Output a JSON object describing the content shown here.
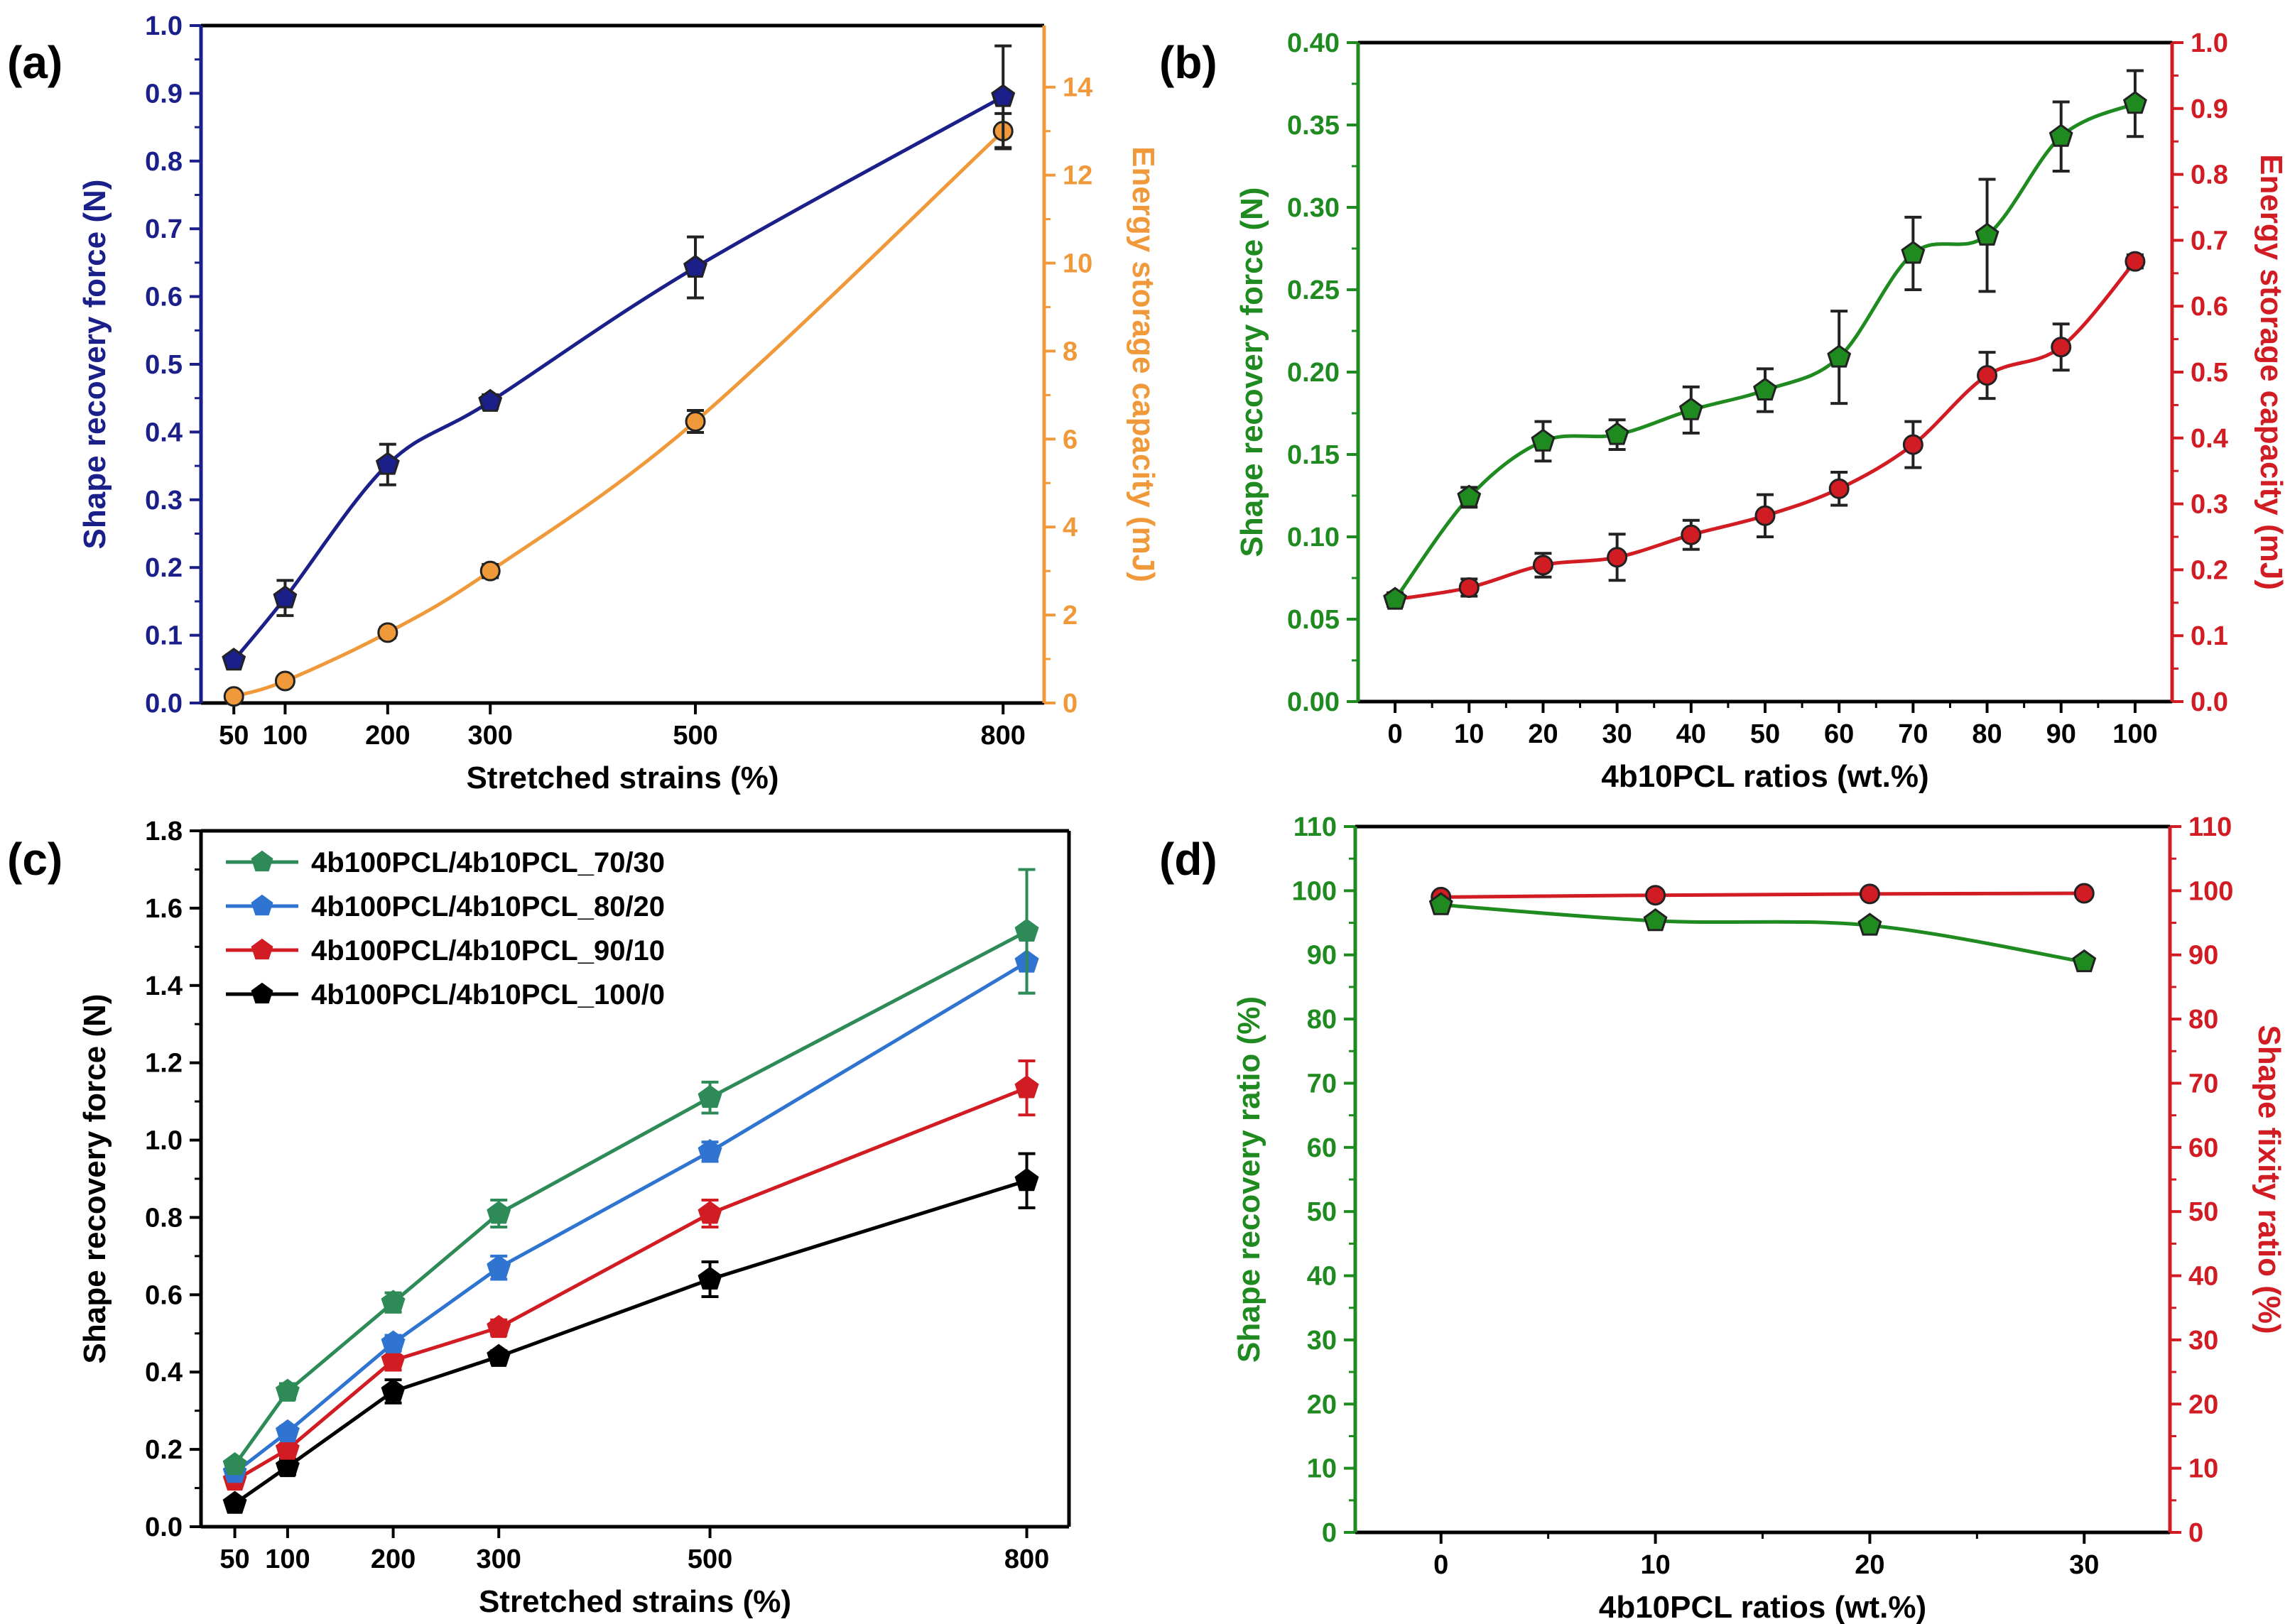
{
  "panels": {
    "a": {
      "letter": "(a)"
    },
    "b": {
      "letter": "(b)"
    },
    "c": {
      "letter": "(c)"
    },
    "d": {
      "letter": "(d)"
    }
  },
  "colors": {
    "navy": "#1b1f8a",
    "orange": "#f0993a",
    "green": "#1f8a1f",
    "red": "#d01c22",
    "teal": "#2e8b57",
    "blue": "#2f74d0",
    "black": "#000000"
  },
  "chart_data": [
    {
      "id": "a",
      "type": "line",
      "title": "",
      "xlabel": "Stretched strains (%)",
      "ylabel": "Shape recovery force (N)",
      "y2label": "Energy storage capacity (mJ)",
      "xlim": [
        18,
        840
      ],
      "ylim": [
        0,
        1.0
      ],
      "y2lim": [
        0,
        15.4
      ],
      "xticks": [
        50,
        100,
        200,
        300,
        500,
        800
      ],
      "yticks": [
        0.0,
        0.1,
        0.2,
        0.3,
        0.4,
        0.5,
        0.6,
        0.7,
        0.8,
        0.9,
        1.0
      ],
      "y2ticks": [
        0,
        2,
        4,
        6,
        8,
        10,
        12,
        14
      ],
      "x": [
        50,
        100,
        200,
        300,
        500,
        800
      ],
      "series": [
        {
          "name": "Shape recovery force",
          "axis": "left",
          "color": "#1b1f8a",
          "marker": "pentagon",
          "values": [
            0.063,
            0.155,
            0.352,
            0.445,
            0.643,
            0.895
          ],
          "errors": [
            0.008,
            0.026,
            0.03,
            0.01,
            0.045,
            0.075
          ]
        },
        {
          "name": "Energy storage capacity",
          "axis": "right",
          "color": "#f0993a",
          "marker": "circle",
          "values": [
            0.15,
            0.5,
            1.6,
            3.0,
            6.4,
            13.0
          ],
          "errors": [
            0.05,
            0.1,
            0.12,
            0.15,
            0.25,
            0.4
          ]
        }
      ]
    },
    {
      "id": "b",
      "type": "line",
      "title": "",
      "xlabel": "4b10PCL ratios (wt.%)",
      "ylabel": "Shape recovery force (N)",
      "y2label": "Energy storage capacity (mJ)",
      "xlim": [
        -5,
        105
      ],
      "ylim": [
        0,
        0.4
      ],
      "y2lim": [
        0,
        1.0
      ],
      "xticks": [
        0,
        10,
        20,
        30,
        40,
        50,
        60,
        70,
        80,
        90,
        100
      ],
      "yticks": [
        0.0,
        0.05,
        0.1,
        0.15,
        0.2,
        0.25,
        0.3,
        0.35,
        0.4
      ],
      "ytick_labels": [
        "0.00",
        "0.05",
        "0.10",
        "0.15",
        "0.20",
        "0.25",
        "0.30",
        "0.35",
        "0.40"
      ],
      "y2ticks": [
        0.0,
        0.1,
        0.2,
        0.3,
        0.4,
        0.5,
        0.6,
        0.7,
        0.8,
        0.9,
        1.0
      ],
      "x": [
        0,
        10,
        20,
        30,
        40,
        50,
        60,
        70,
        80,
        90,
        100
      ],
      "series": [
        {
          "name": "Shape recovery force",
          "axis": "left",
          "color": "#1f8a1f",
          "marker": "pentagon",
          "values": [
            0.062,
            0.124,
            0.158,
            0.162,
            0.177,
            0.189,
            0.209,
            0.272,
            0.283,
            0.343,
            0.363
          ],
          "errors": [
            0.004,
            0.006,
            0.012,
            0.009,
            0.014,
            0.013,
            0.028,
            0.022,
            0.034,
            0.021,
            0.02
          ]
        },
        {
          "name": "Energy storage capacity",
          "axis": "right",
          "color": "#d01c22",
          "marker": "circle",
          "values": [
            0.155,
            0.173,
            0.207,
            0.219,
            0.253,
            0.282,
            0.323,
            0.39,
            0.495,
            0.538,
            0.668
          ],
          "errors": [
            0.01,
            0.013,
            0.018,
            0.035,
            0.022,
            0.032,
            0.025,
            0.035,
            0.035,
            0.035,
            0.01
          ]
        }
      ]
    },
    {
      "id": "c",
      "type": "line",
      "title": "",
      "xlabel": "Stretched strains (%)",
      "ylabel": "Shape recovery force (N)",
      "xlim": [
        18,
        840
      ],
      "ylim": [
        0,
        1.8
      ],
      "xticks": [
        50,
        100,
        200,
        300,
        500,
        800
      ],
      "yticks": [
        0.0,
        0.2,
        0.4,
        0.6,
        0.8,
        1.0,
        1.2,
        1.4,
        1.6,
        1.8
      ],
      "x": [
        50,
        100,
        200,
        300,
        500,
        800
      ],
      "legend_position": "top-left",
      "series": [
        {
          "name": "4b100PCL/4b10PCL_70/30",
          "color": "#2e8b57",
          "marker": "pentagon",
          "values": [
            0.16,
            0.35,
            0.58,
            0.81,
            1.11,
            1.54
          ],
          "errors": [
            0.01,
            0.02,
            0.025,
            0.035,
            0.04,
            0.16
          ]
        },
        {
          "name": "4b100PCL/4b10PCL_80/20",
          "color": "#2f74d0",
          "marker": "pentagon",
          "values": [
            0.14,
            0.245,
            0.475,
            0.67,
            0.97,
            1.46
          ],
          "errors": [
            0.01,
            0.015,
            0.02,
            0.03,
            0.025,
            0.08
          ]
        },
        {
          "name": "4b100PCL/4b10PCL_90/10",
          "color": "#d01c22",
          "marker": "pentagon",
          "values": [
            0.12,
            0.2,
            0.43,
            0.515,
            0.81,
            1.135
          ],
          "errors": [
            0.01,
            0.015,
            0.025,
            0.02,
            0.035,
            0.07
          ]
        },
        {
          "name": "4b100PCL/4b10PCL_100/0",
          "color": "#000000",
          "marker": "pentagon",
          "values": [
            0.06,
            0.155,
            0.35,
            0.44,
            0.64,
            0.895
          ],
          "errors": [
            0.01,
            0.02,
            0.03,
            0.015,
            0.045,
            0.07
          ]
        }
      ]
    },
    {
      "id": "d",
      "type": "line",
      "title": "",
      "xlabel": "4b10PCL ratios (wt.%)",
      "ylabel": "Shape recovery ratio (%)",
      "y2label": "Shape fixity ratio (%)",
      "xlim": [
        -4,
        34
      ],
      "ylim": [
        0,
        110
      ],
      "y2lim": [
        0,
        110
      ],
      "xticks": [
        0,
        10,
        20,
        30
      ],
      "yticks": [
        0,
        10,
        20,
        30,
        40,
        50,
        60,
        70,
        80,
        90,
        100,
        110
      ],
      "y2ticks": [
        0,
        10,
        20,
        30,
        40,
        50,
        60,
        70,
        80,
        90,
        100,
        110
      ],
      "x": [
        0,
        10,
        20,
        30
      ],
      "series": [
        {
          "name": "Shape recovery ratio",
          "axis": "left",
          "color": "#1f8a1f",
          "marker": "pentagon",
          "values": [
            97.8,
            95.3,
            94.6,
            88.9
          ],
          "errors": [
            0.5,
            0.5,
            0.6,
            0.5
          ]
        },
        {
          "name": "Shape fixity ratio",
          "axis": "right",
          "color": "#d01c22",
          "marker": "circle",
          "values": [
            99.0,
            99.3,
            99.5,
            99.6
          ],
          "errors": [
            0.3,
            0.2,
            0.2,
            0.2
          ]
        }
      ]
    }
  ]
}
